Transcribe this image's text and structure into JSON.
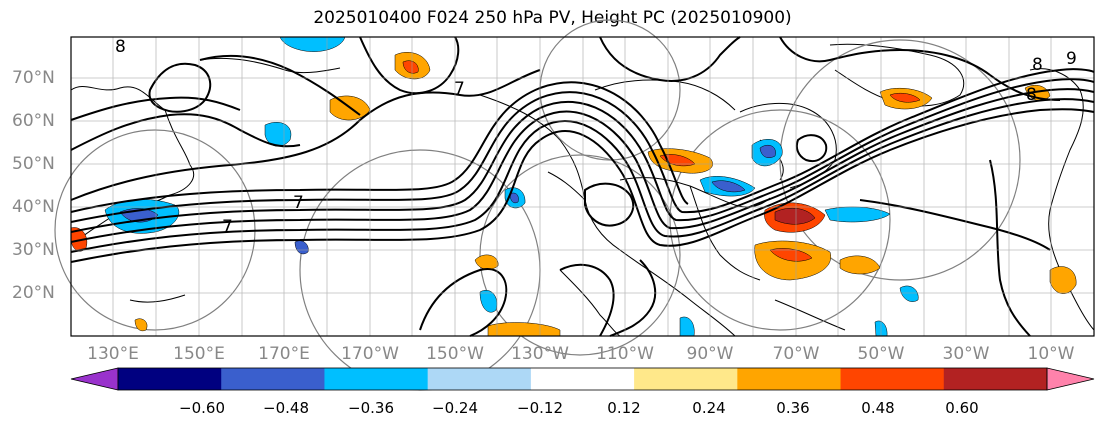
{
  "title": "2025010400 F024 250 hPa PV, Height PC (2025010900)",
  "lat_labels": [
    "70°N",
    "60°N",
    "50°N",
    "40°N",
    "30°N",
    "20°N"
  ],
  "lon_labels": [
    "130°E",
    "150°E",
    "170°E",
    "170°W",
    "150°W",
    "130°W",
    "110°W",
    "90°W",
    "70°W",
    "50°W",
    "30°W",
    "10°W"
  ],
  "contour_labels": [
    "7",
    "7",
    "7",
    "8",
    "9",
    "8",
    "8"
  ],
  "colorbar": {
    "ticks": [
      "−0.60",
      "−0.48",
      "−0.36",
      "−0.24",
      "−0.12",
      "0.12",
      "0.24",
      "0.36",
      "0.48",
      "0.60"
    ],
    "colors": [
      "#9932cc",
      "#000080",
      "#3a5fcd",
      "#00bfff",
      "#add8f6",
      "#ffffff",
      "#ffe88a",
      "#ffa500",
      "#ff4500",
      "#b22222",
      "#ff82ab"
    ]
  }
}
